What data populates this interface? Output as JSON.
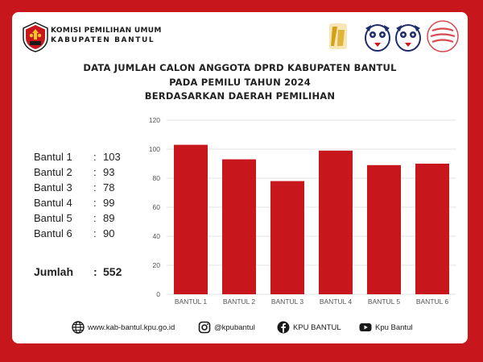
{
  "header": {
    "org_line1": "KOMISI PEMILIHAN UMUM",
    "org_line2": "KABUPATEN BANTUL"
  },
  "chart_data": {
    "type": "bar",
    "title_lines": [
      "DATA JUMLAH CALON ANGGOTA DPRD KABUPATEN BANTUL",
      "PADA PEMILU TAHUN 2024",
      "BERDASARKAN DAERAH PEMILIHAN"
    ],
    "categories": [
      "BANTUL 1",
      "BANTUL 2",
      "BANTUL 3",
      "BANTUL 4",
      "BANTUL 5",
      "BANTUL 6"
    ],
    "values": [
      103,
      93,
      78,
      99,
      89,
      90
    ],
    "ylim": [
      0,
      120
    ],
    "yticks": [
      0,
      20,
      40,
      60,
      80,
      100,
      120
    ],
    "bar_color": "#c8161d",
    "grid": true
  },
  "stats": {
    "rows": [
      {
        "label": "Bantul 1",
        "sep": ":",
        "value": "103"
      },
      {
        "label": "Bantul 2",
        "sep": ":",
        "value": "93"
      },
      {
        "label": "Bantul 3",
        "sep": ":",
        "value": "78"
      },
      {
        "label": "Bantul 4",
        "sep": ":",
        "value": "99"
      },
      {
        "label": "Bantul 5",
        "sep": ":",
        "value": "89"
      },
      {
        "label": "Bantul 6",
        "sep": ":",
        "value": "90"
      }
    ],
    "total": {
      "label": "Jumlah",
      "sep": ":",
      "value": "552"
    }
  },
  "footer": {
    "website": "www.kab-bantul.kpu.go.id",
    "instagram": "@kpubantul",
    "facebook": "KPU BANTUL",
    "youtube": "Kpu Bantul"
  },
  "icons": {
    "website": "globe-icon",
    "instagram": "instagram-icon",
    "facebook": "facebook-icon",
    "youtube": "youtube-icon"
  },
  "colors": {
    "accent": "#c8161d",
    "background": "#ffffff"
  }
}
